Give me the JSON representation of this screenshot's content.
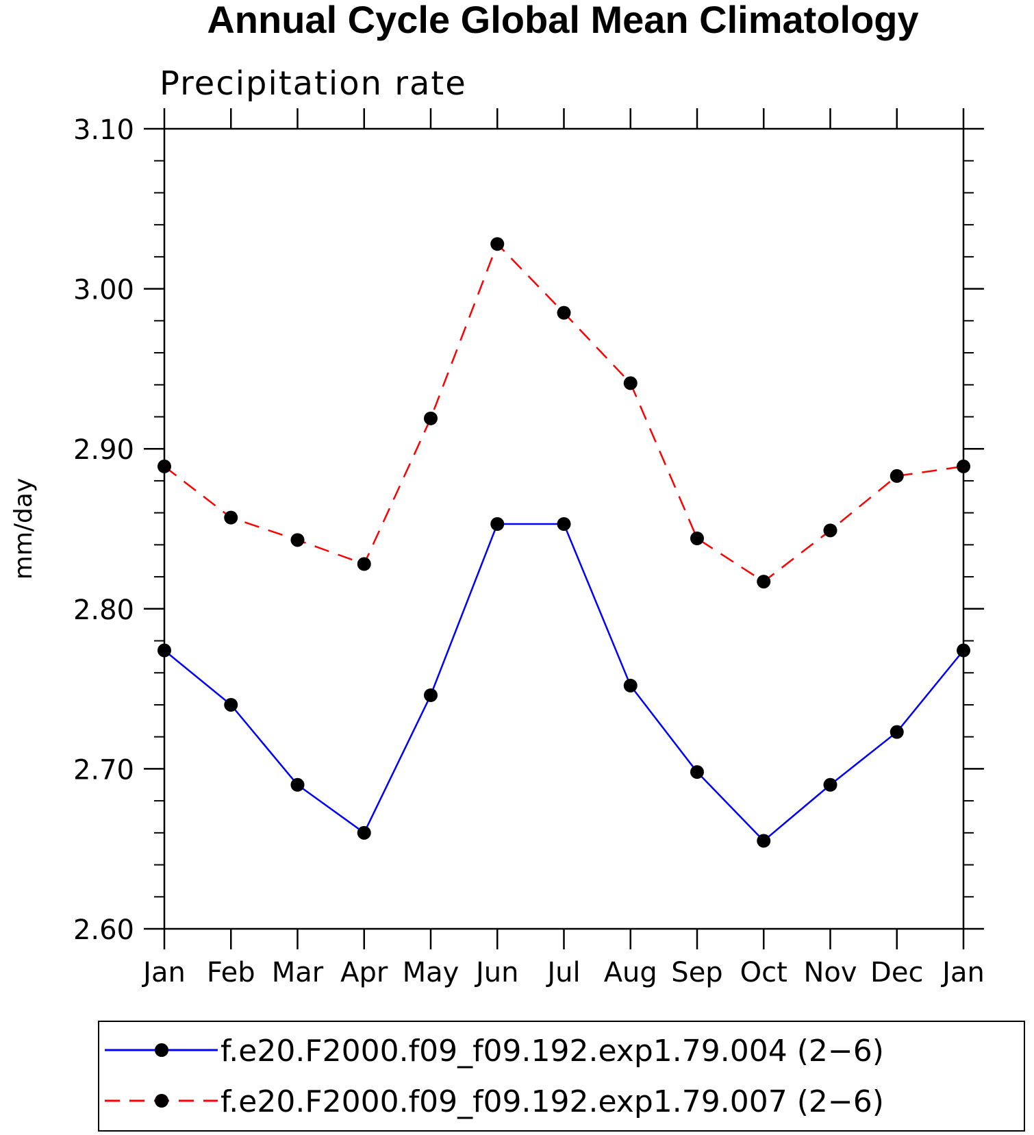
{
  "chart_data": {
    "type": "line",
    "title": "Annual Cycle Global Mean Climatology",
    "subtitle": "Precipitation rate",
    "xlabel": "",
    "ylabel": "mm/day",
    "categories": [
      "Jan",
      "Feb",
      "Mar",
      "Apr",
      "May",
      "Jun",
      "Jul",
      "Aug",
      "Sep",
      "Oct",
      "Nov",
      "Dec",
      "Jan"
    ],
    "ylim": [
      2.6,
      3.1
    ],
    "yticks": [
      "2.60",
      "2.70",
      "2.80",
      "2.90",
      "3.00",
      "3.10"
    ],
    "ytick_values": [
      2.6,
      2.7,
      2.8,
      2.9,
      3.0,
      3.1
    ],
    "minor_step": 0.02,
    "grid": false,
    "legend_position": "bottom",
    "series": [
      {
        "name": "f.e20.F2000.f09_f09.192.exp1.79.004 (2−6)",
        "color": "#0000ff",
        "dash": "solid",
        "marker": "filled-circle",
        "values": [
          2.774,
          2.74,
          2.69,
          2.66,
          2.746,
          2.853,
          2.853,
          2.752,
          2.698,
          2.655,
          2.69,
          2.723,
          2.774
        ]
      },
      {
        "name": "f.e20.F2000.f09_f09.192.exp1.79.007 (2−6)",
        "color": "#ff0000",
        "dash": "dashed",
        "marker": "filled-circle",
        "values": [
          2.889,
          2.857,
          2.843,
          2.828,
          2.919,
          3.028,
          2.985,
          2.941,
          2.844,
          2.817,
          2.849,
          2.883,
          2.889
        ]
      }
    ]
  }
}
